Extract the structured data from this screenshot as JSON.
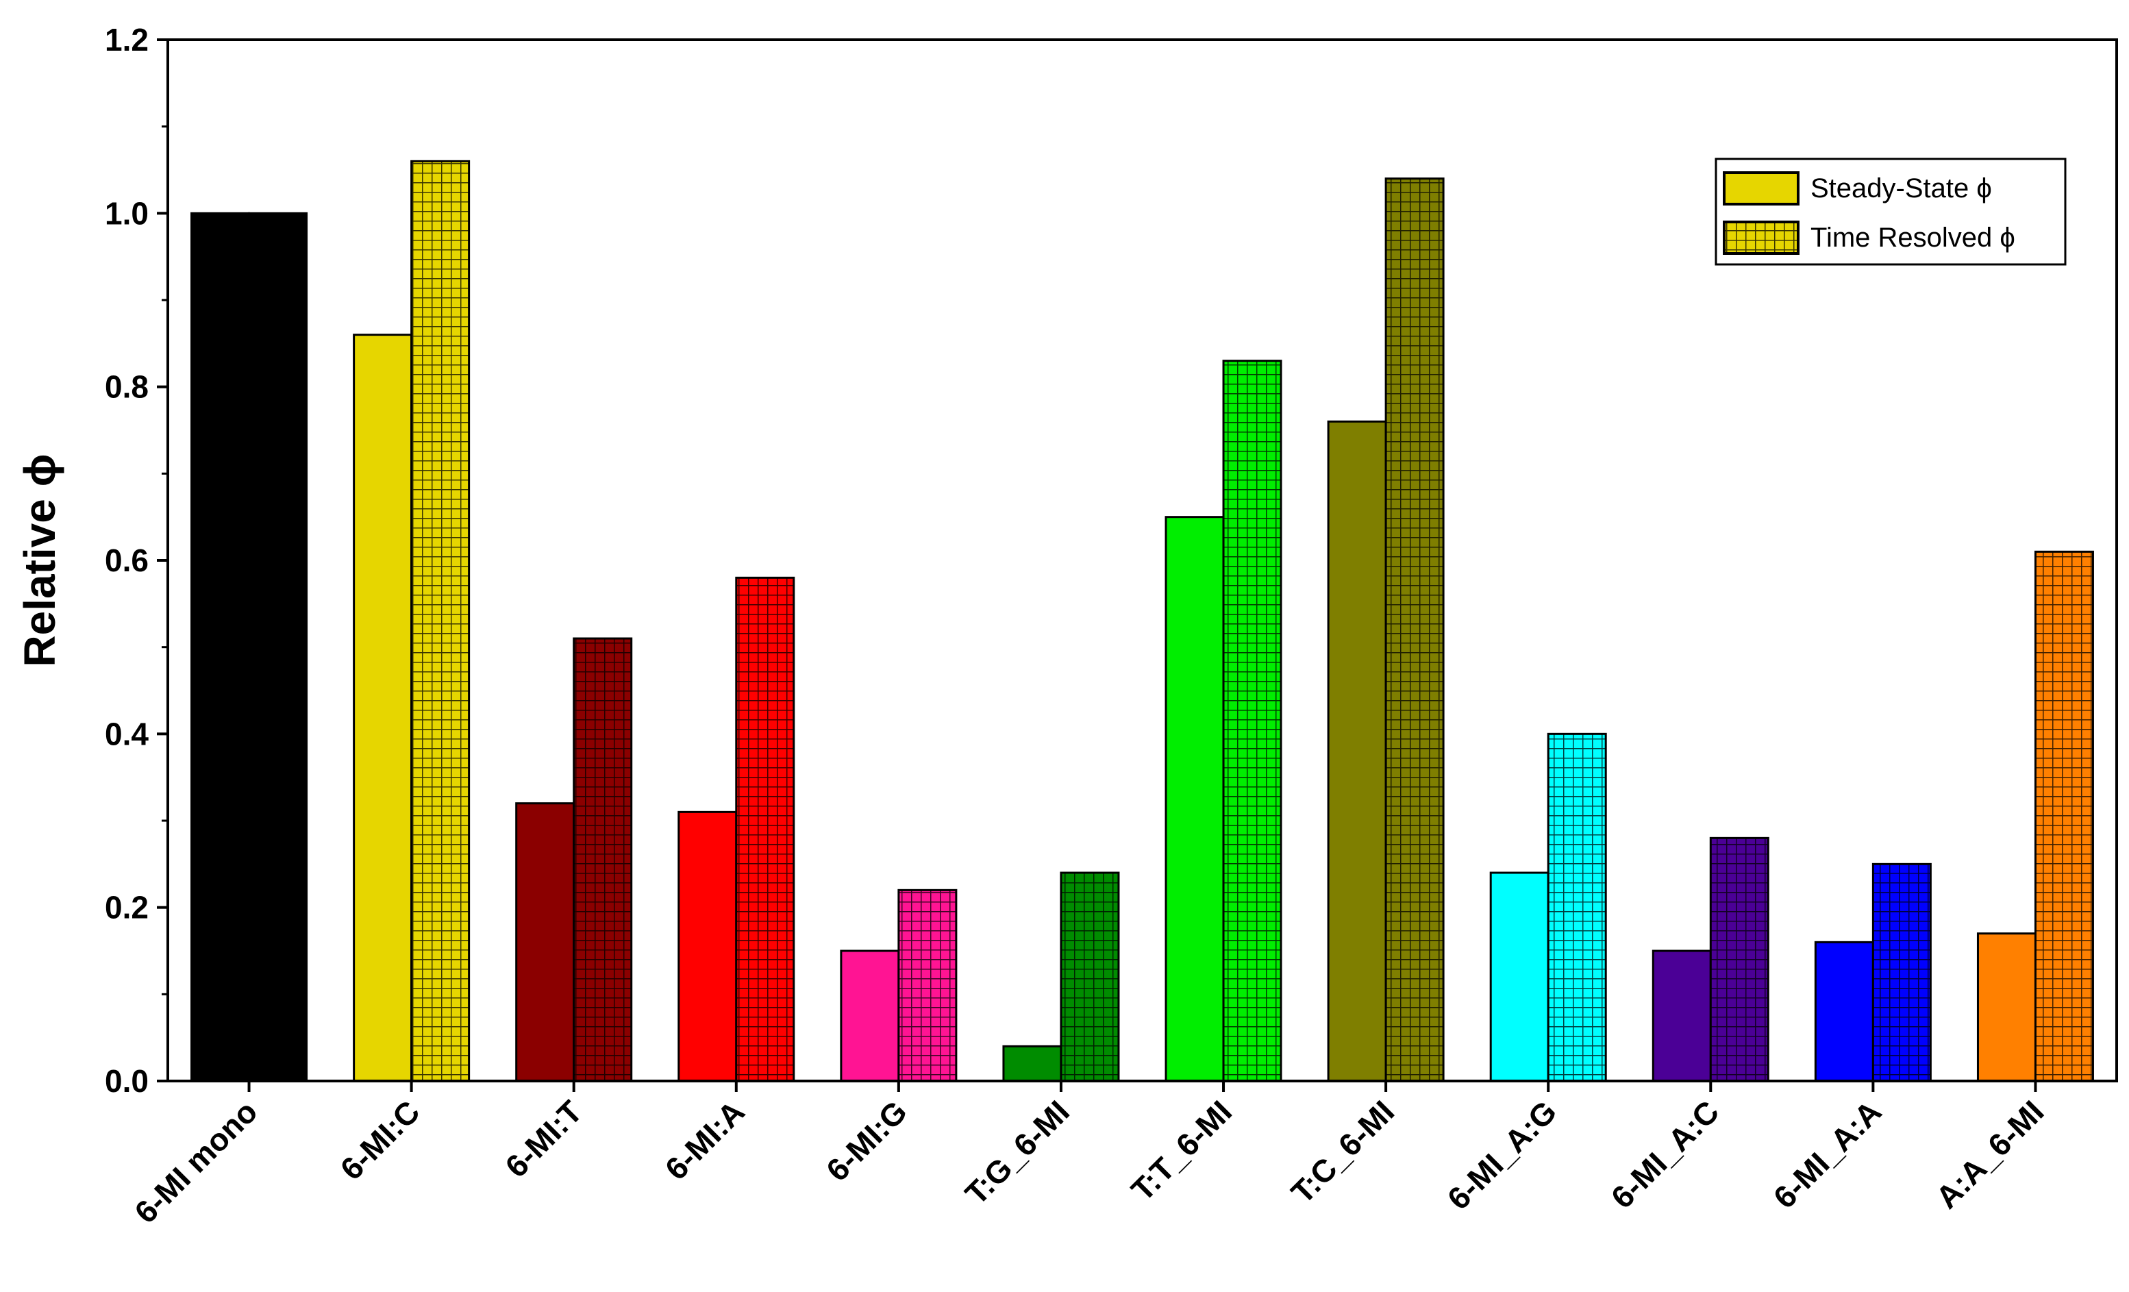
{
  "chart_data": {
    "type": "bar",
    "ylabel": "Relative ϕ",
    "xlabel": "",
    "ylim": [
      0,
      1.2
    ],
    "yticks": [
      "0.0",
      "0.2",
      "0.4",
      "0.6",
      "0.8",
      "1.0",
      "1.2"
    ],
    "grid": false,
    "legend_position": "top-right",
    "categories": [
      "6-MI mono",
      "6-MI:C",
      "6-MI:T",
      "6-MI:A",
      "6-MI:G",
      "T:G_6-MI",
      "T:T_6-MI",
      "T:C_6-MI",
      "6-MI_A:G",
      "6-MI_A:C",
      "6-MI_A:A",
      "A:A_6-MI"
    ],
    "colors": [
      "#000000",
      "#e6d600",
      "#8b0000",
      "#ff0000",
      "#ff1493",
      "#008c00",
      "#00ee00",
      "#7f7f00",
      "#00ffff",
      "#4b0096",
      "#0000ff",
      "#ff8000"
    ],
    "series": [
      {
        "name": "Steady-State ϕ",
        "pattern": "solid",
        "values": [
          1.0,
          0.86,
          0.32,
          0.31,
          0.15,
          0.04,
          0.65,
          0.76,
          0.24,
          0.15,
          0.16,
          0.17
        ]
      },
      {
        "name": "Time Resolved ϕ",
        "pattern": "grid",
        "values": [
          1.0,
          1.06,
          0.51,
          0.58,
          0.22,
          0.24,
          0.83,
          1.04,
          0.4,
          0.28,
          0.25,
          0.61
        ]
      }
    ],
    "legend_colors": [
      "#e6d600",
      "#e6d600"
    ]
  }
}
